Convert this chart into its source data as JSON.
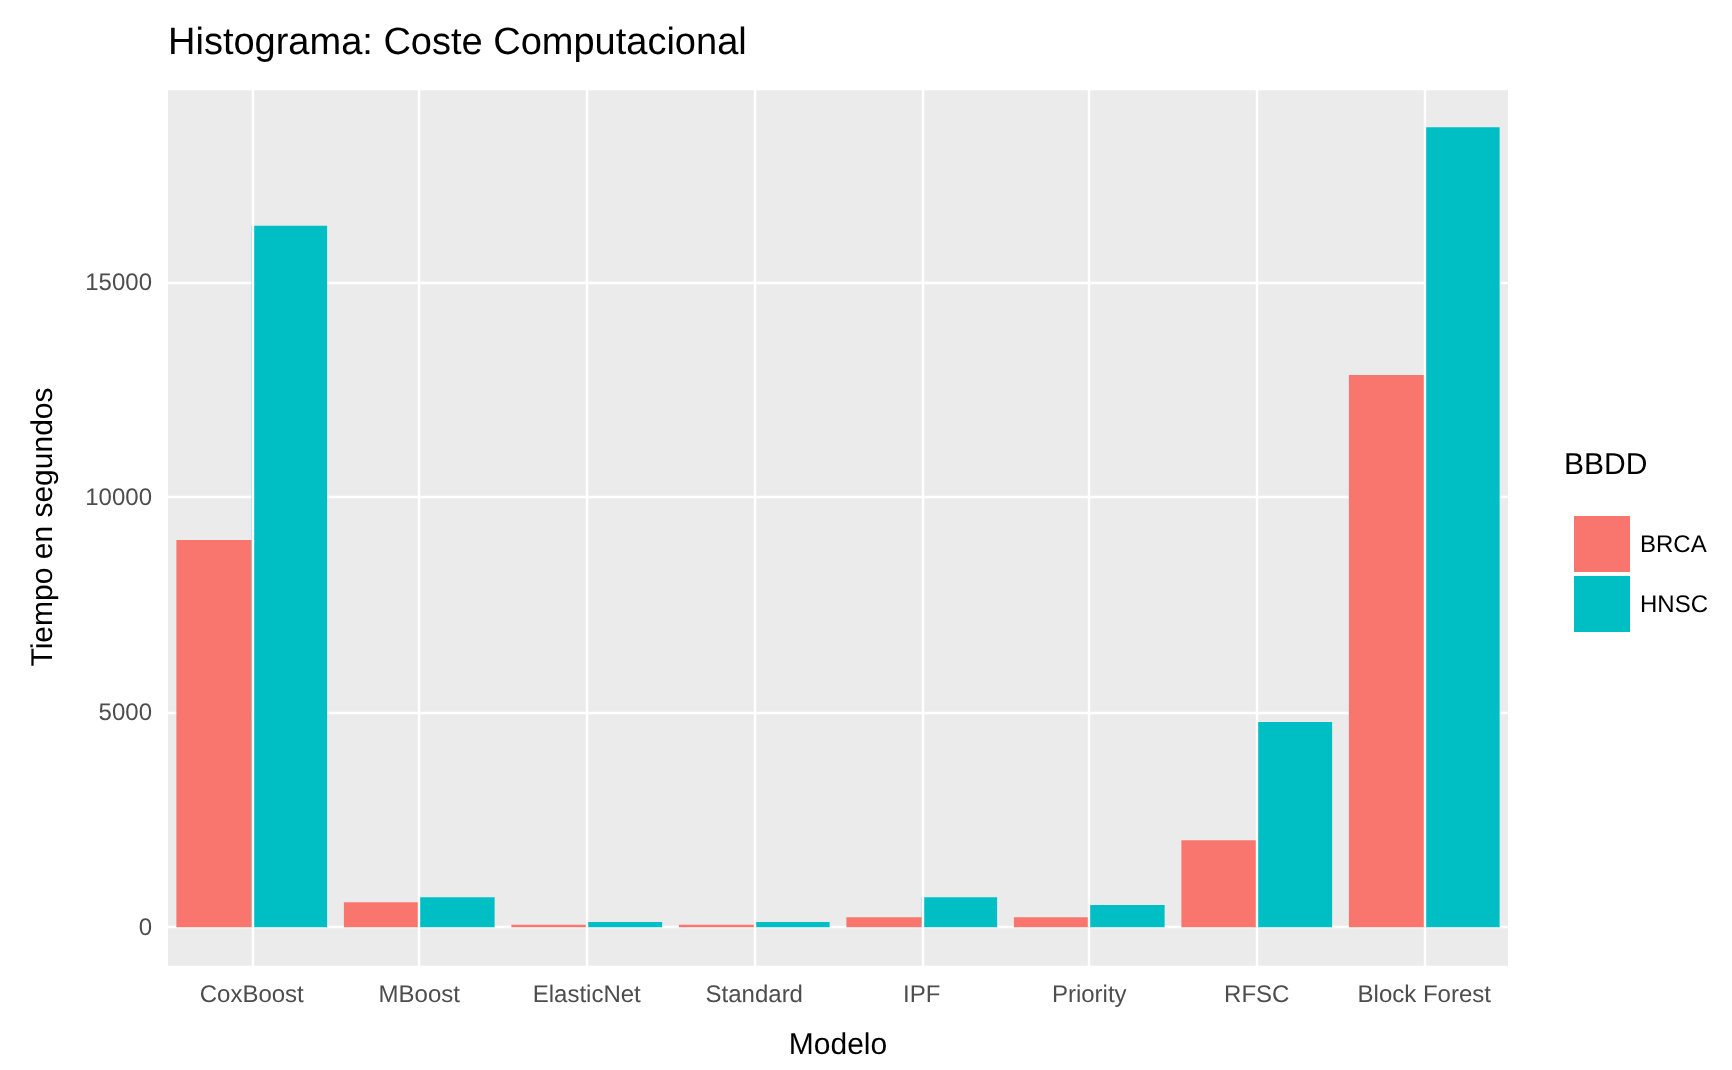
{
  "chart_data": {
    "type": "bar",
    "title": "Histograma: Coste Computacional",
    "xlabel": "Modelo",
    "ylabel": "Tiempo en segundos",
    "legend_title": "BBDD",
    "categories": [
      "CoxBoost",
      "MBoost",
      "ElasticNet",
      "Standard",
      "IPF",
      "Priority",
      "RFSC",
      "Block Forest"
    ],
    "series": [
      {
        "name": "BRCA",
        "color": "#f8766d",
        "values": [
          9000,
          580,
          60,
          60,
          230,
          230,
          2020,
          12830
        ]
      },
      {
        "name": "HNSC",
        "color": "#00bfc4",
        "values": [
          16300,
          700,
          120,
          120,
          700,
          520,
          4770,
          18590
        ]
      }
    ],
    "ylim": [
      -900,
      19500
    ],
    "yticks": [
      0,
      5000,
      10000,
      15000
    ],
    "grid": true,
    "legend": "right"
  }
}
